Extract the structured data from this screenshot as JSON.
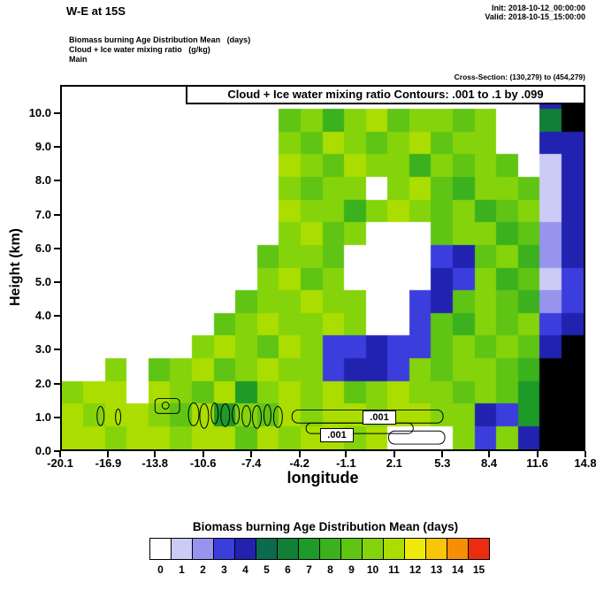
{
  "header": {
    "title": "W-E at 15S",
    "init_label": "Init: 2018-10-12_00:00:00",
    "valid_label": "Valid: 2018-10-15_15:00:00",
    "subtitle1": "Biomass burning Age Distribution Mean   (days)",
    "subtitle2": "Cloud + Ice water mixing ratio   (g/kg)",
    "subtitle3": "Main",
    "cross_section": "Cross-Section: (130,279) to (454,279)"
  },
  "plot": {
    "inner_title": "Cloud + Ice water mixing ratio Contours: .001 to .1 by .099",
    "ylabel": "Height (km)",
    "xlabel": "longitude"
  },
  "chart_data": {
    "type": "heatmap",
    "title": "Biomass burning Age Distribution Mean  (days)",
    "xlabel": "longitude",
    "ylabel": "Height (km)",
    "x_ticks": [
      -20.1,
      -16.9,
      -13.8,
      -10.6,
      -7.4,
      -4.2,
      -1.1,
      2.1,
      5.3,
      8.4,
      11.6,
      14.8
    ],
    "y_ticks": [
      0,
      1,
      2,
      3,
      4,
      5,
      6,
      7,
      8,
      9,
      10
    ],
    "xlim": [
      -20.1,
      14.8
    ],
    "ylim": [
      0,
      10.84
    ],
    "contour_overlay": {
      "field": "Cloud + Ice water mixing ratio (g/kg)",
      "levels": ".001 to .1 by .099",
      "labels": [
        ".001",
        ".001"
      ]
    },
    "colorbar": {
      "title": "Biomass burning Age Distribution Mean  (days)",
      "tick_labels": [
        "0",
        "1",
        "2",
        "3",
        "4",
        "5",
        "6",
        "7",
        "8",
        "9",
        "10",
        "11",
        "12",
        "13",
        "14",
        "15"
      ],
      "colors": [
        "#ffffff",
        "#cbcbf6",
        "#9694ec",
        "#3c3ddd",
        "#2222b0",
        "#0c6b4f",
        "#117f36",
        "#1d9a28",
        "#3bb11d",
        "#5fc413",
        "#84d30b",
        "#abdd00",
        "#f0ea0a",
        "#f7c606",
        "#f68f06",
        "#ec2c0e"
      ]
    },
    "terrain_color": "#000000",
    "grid_units": "age (days); -1 = terrain (black)",
    "grid": [
      [
        0,
        0,
        0,
        0,
        0,
        0,
        0,
        0,
        0,
        0,
        0,
        0,
        0,
        0,
        0,
        0,
        0,
        0,
        0,
        0,
        0,
        0,
        4,
        -1
      ],
      [
        0,
        0,
        0,
        0,
        0,
        0,
        0,
        0,
        0,
        0,
        9,
        10,
        8,
        10,
        11,
        9,
        10,
        10,
        9,
        10,
        0,
        0,
        6,
        -1
      ],
      [
        0,
        0,
        0,
        0,
        0,
        0,
        0,
        0,
        0,
        0,
        10,
        9,
        11,
        10,
        9,
        10,
        11,
        9,
        10,
        10,
        0,
        0,
        4,
        4
      ],
      [
        0,
        0,
        0,
        0,
        0,
        0,
        0,
        0,
        0,
        0,
        11,
        10,
        9,
        11,
        10,
        10,
        8,
        10,
        9,
        10,
        9,
        0,
        1,
        4
      ],
      [
        0,
        0,
        0,
        0,
        0,
        0,
        0,
        0,
        0,
        0,
        10,
        9,
        10,
        10,
        0,
        10,
        11,
        9,
        8,
        10,
        10,
        9,
        1,
        4
      ],
      [
        0,
        0,
        0,
        0,
        0,
        0,
        0,
        0,
        0,
        0,
        11,
        10,
        10,
        8,
        10,
        11,
        10,
        9,
        10,
        8,
        9,
        10,
        1,
        4
      ],
      [
        0,
        0,
        0,
        0,
        0,
        0,
        0,
        0,
        0,
        0,
        10,
        11,
        9,
        10,
        0,
        0,
        0,
        9,
        10,
        10,
        8,
        9,
        2,
        4
      ],
      [
        0,
        0,
        0,
        0,
        0,
        0,
        0,
        0,
        0,
        9,
        10,
        10,
        9,
        0,
        0,
        0,
        0,
        3,
        4,
        9,
        10,
        8,
        2,
        4
      ],
      [
        0,
        0,
        0,
        0,
        0,
        0,
        0,
        0,
        0,
        10,
        11,
        9,
        10,
        0,
        0,
        0,
        0,
        4,
        3,
        10,
        8,
        9,
        1,
        3
      ],
      [
        0,
        0,
        0,
        0,
        0,
        0,
        0,
        0,
        9,
        10,
        10,
        11,
        10,
        10,
        0,
        0,
        3,
        4,
        9,
        10,
        9,
        8,
        2,
        3
      ],
      [
        0,
        0,
        0,
        0,
        0,
        0,
        0,
        9,
        10,
        11,
        10,
        10,
        11,
        10,
        0,
        0,
        3,
        9,
        8,
        10,
        9,
        10,
        3,
        4
      ],
      [
        0,
        0,
        0,
        0,
        0,
        0,
        10,
        11,
        10,
        9,
        11,
        10,
        3,
        3,
        4,
        3,
        3,
        9,
        10,
        9,
        10,
        9,
        4,
        -1
      ],
      [
        0,
        0,
        10,
        0,
        9,
        10,
        11,
        9,
        10,
        11,
        10,
        10,
        3,
        4,
        4,
        3,
        10,
        9,
        10,
        10,
        9,
        8,
        -1,
        -1
      ],
      [
        10,
        11,
        11,
        0,
        11,
        10,
        9,
        11,
        7,
        10,
        11,
        10,
        11,
        9,
        10,
        11,
        10,
        10,
        9,
        10,
        9,
        7,
        -1,
        -1
      ],
      [
        11,
        10,
        11,
        11,
        10,
        9,
        11,
        7,
        10,
        9,
        11,
        10,
        11,
        11,
        10,
        11,
        11,
        10,
        10,
        4,
        3,
        7,
        -1,
        -1
      ],
      [
        11,
        11,
        10,
        11,
        11,
        10,
        11,
        11,
        9,
        11,
        10,
        11,
        11,
        10,
        11,
        0,
        0,
        0,
        10,
        3,
        10,
        4,
        -1,
        -1
      ]
    ]
  }
}
